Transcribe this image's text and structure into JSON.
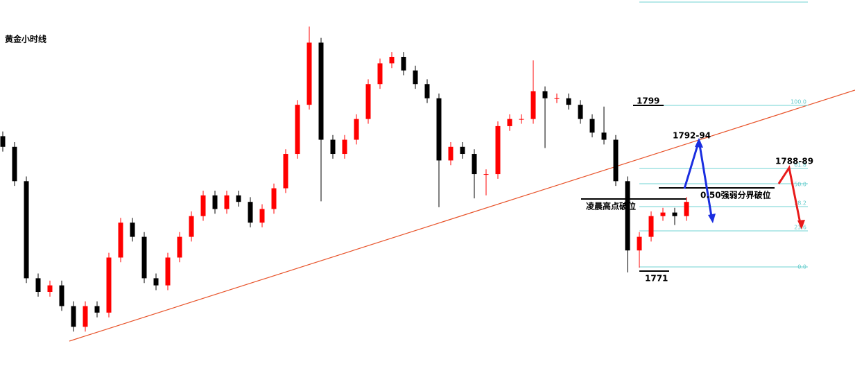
{
  "chart_data": {
    "type": "candlestick",
    "title": "黄金小时线",
    "open": [
      1794.0,
      1792.2,
      1786.4,
      1770.0,
      1767.7,
      1768.8,
      1765.3,
      1761.8,
      1765.3,
      1764.2,
      1773.5,
      1779.4,
      1777.0,
      1770.0,
      1768.8,
      1773.5,
      1777.0,
      1780.5,
      1784.0,
      1781.7,
      1784.0,
      1782.9,
      1779.4,
      1781.7,
      1785.2,
      1791.0,
      1799.3,
      1809.8,
      1793.4,
      1791.0,
      1793.4,
      1796.9,
      1802.8,
      1806.3,
      1807.4,
      1805.1,
      1802.8,
      1800.4,
      1789.9,
      1792.2,
      1791.0,
      1787.6,
      1787.6,
      1795.7,
      1796.9,
      1796.9,
      1801.6,
      1800.4,
      1800.4,
      1799.3,
      1796.9,
      1794.6,
      1793.4,
      1786.4,
      1774.7,
      1777.0,
      1780.5,
      1781.1,
      1780.5
    ],
    "high": [
      1794.8,
      1793.0,
      1787.2,
      1770.8,
      1769.6,
      1769.6,
      1766.1,
      1766.1,
      1766.1,
      1774.3,
      1780.2,
      1780.2,
      1777.8,
      1770.8,
      1774.3,
      1777.8,
      1781.3,
      1784.8,
      1784.8,
      1784.8,
      1784.8,
      1783.7,
      1782.5,
      1786.0,
      1791.8,
      1800.1,
      1812.5,
      1810.6,
      1794.2,
      1794.2,
      1797.7,
      1803.6,
      1807.1,
      1808.2,
      1808.2,
      1805.9,
      1803.6,
      1801.2,
      1793.0,
      1793.0,
      1791.8,
      1788.4,
      1796.5,
      1797.7,
      1797.7,
      1806.8,
      1802.4,
      1801.2,
      1801.2,
      1800.1,
      1797.7,
      1799.0,
      1794.2,
      1787.2,
      1777.8,
      1781.3,
      1781.9,
      1781.9,
      1783.7
    ],
    "low": [
      1791.4,
      1785.6,
      1769.2,
      1766.9,
      1766.9,
      1764.5,
      1761.0,
      1761.0,
      1763.4,
      1763.4,
      1772.7,
      1776.2,
      1769.2,
      1768.0,
      1768.0,
      1772.7,
      1776.2,
      1779.7,
      1780.9,
      1780.9,
      1782.1,
      1778.6,
      1778.6,
      1780.9,
      1784.4,
      1790.2,
      1798.5,
      1783.0,
      1790.2,
      1790.2,
      1792.6,
      1796.1,
      1802.0,
      1805.5,
      1804.3,
      1802.0,
      1799.6,
      1782.0,
      1789.1,
      1790.2,
      1783.5,
      1784.0,
      1786.8,
      1794.9,
      1796.1,
      1796.1,
      1792.0,
      1799.6,
      1798.5,
      1796.1,
      1793.8,
      1792.6,
      1785.6,
      1771.0,
      1771.8,
      1776.2,
      1779.7,
      1779.0,
      1779.7
    ],
    "close": [
      1792.2,
      1786.4,
      1770.0,
      1767.7,
      1768.8,
      1765.3,
      1761.8,
      1765.3,
      1764.2,
      1773.5,
      1779.4,
      1777.0,
      1770.0,
      1768.8,
      1773.5,
      1777.0,
      1780.5,
      1784.0,
      1781.7,
      1784.0,
      1782.9,
      1779.4,
      1781.7,
      1785.2,
      1791.0,
      1799.3,
      1809.8,
      1793.4,
      1791.0,
      1793.4,
      1796.9,
      1802.8,
      1806.3,
      1807.4,
      1805.1,
      1802.8,
      1800.4,
      1789.9,
      1792.2,
      1791.0,
      1787.6,
      1787.6,
      1795.7,
      1796.9,
      1796.9,
      1801.6,
      1800.4,
      1800.4,
      1799.3,
      1796.9,
      1794.6,
      1793.4,
      1786.4,
      1774.7,
      1777.0,
      1780.5,
      1781.1,
      1780.5,
      1782.9
    ],
    "ylim": [
      1754,
      1817
    ],
    "up_color": "#ff0000",
    "down_color": "#000000",
    "annotations": [
      "1799",
      "1792-94",
      "1788-89",
      "0.50强弱分界破位",
      "凌晨高点破位",
      "1771"
    ],
    "fib_labels": [
      "100.0",
      "61.8",
      "50.0",
      "38.2",
      "23.6",
      "0.0"
    ]
  }
}
